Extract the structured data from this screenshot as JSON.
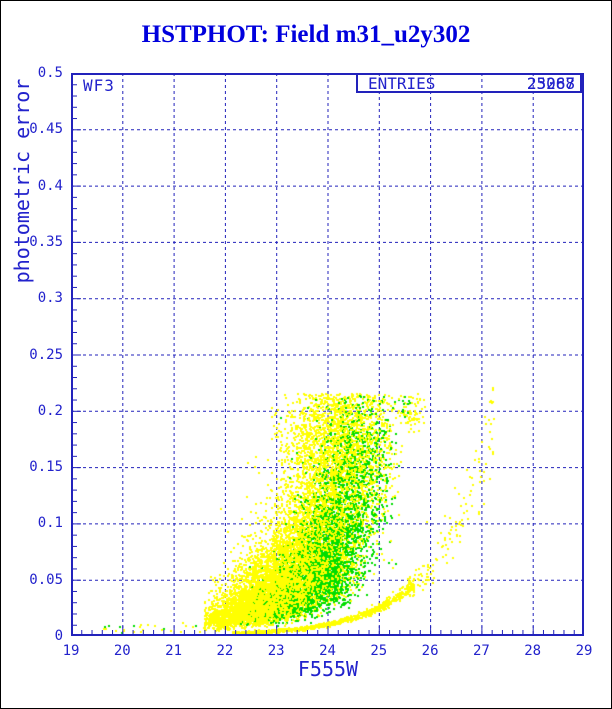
{
  "title": {
    "text": "HSTPHOT: Field m31_u2y302",
    "color": "#0000dd"
  },
  "chip_label": "WF3",
  "stats_box": {
    "label": "ENTRIES",
    "values": [
      "25268",
      "23087"
    ]
  },
  "colors": {
    "axis": "#2222bb",
    "labels": "#2222cc",
    "series_yellow": "#ffff00",
    "series_green": "#00dd00"
  },
  "chart_data": {
    "type": "scatter",
    "title": "HSTPHOT: Field m31_u2y302",
    "xlabel": "F555W",
    "ylabel": "photometric error",
    "xlim": [
      19,
      29
    ],
    "ylim": [
      0,
      0.5
    ],
    "x_major_step": 1,
    "x_minor_step": 0.2,
    "y_major_step": 0.05,
    "y_minor_step": 0.01,
    "x_tick_labels": [
      "19",
      "20",
      "21",
      "22",
      "23",
      "24",
      "25",
      "26",
      "27",
      "28",
      "29"
    ],
    "y_tick_labels": [
      "0",
      "0.05",
      "0.1",
      "0.15",
      "0.2",
      "0.25",
      "0.3",
      "0.35",
      "0.4",
      "0.45",
      "0.5"
    ],
    "grid": true,
    "legend_position": "none",
    "point_size": 2,
    "description": "Photometric error vs F555W magnitude for HST WFPC2 chip WF3. Yellow: all detected stars, dense diagonal cloud from (21.8,0.01) to (25.4,0.215) with hard error cutoff at 0.215, plus a tight bright-star sequence curve err=0.002*exp(0.9*(mag-22.2)) running from (22.2,0.002) to (27.2,0.19) and a small clump near (25.6,0.20). Green: overlaid subset concentrated near (23.9,0.06).",
    "series": [
      {
        "name": "wf3-stars-yellow-cloud",
        "color": "#ffff00",
        "kind": "lognormal_cloud",
        "n": 6500,
        "x_mean": 23.35,
        "x_sigma": 0.85,
        "x_clip": [
          21.6,
          25.45
        ],
        "ridge_x0": 22,
        "ridge_y0": 0.02,
        "ridge_k": 0.78,
        "y_sigma": 0.5,
        "y_cut": [
          0.003,
          0.215
        ]
      },
      {
        "name": "wf3-stars-yellow-faint-band",
        "color": "#ffff00",
        "kind": "gauss_blob",
        "n": 900,
        "x_mean": 24.25,
        "x_sigma": 0.6,
        "x_clip": [
          22.9,
          25.45
        ],
        "y_mean": 0.175,
        "y_sigma": 0.03,
        "y_cut": [
          0.1,
          0.215
        ]
      },
      {
        "name": "wf3-yellow-clump",
        "color": "#ffff00",
        "kind": "gauss_blob",
        "n": 70,
        "x_mean": 25.62,
        "x_sigma": 0.12,
        "x_clip": [
          25.35,
          26.0
        ],
        "y_mean": 0.2,
        "y_sigma": 0.009,
        "y_cut": [
          0.17,
          0.215
        ]
      },
      {
        "name": "wf3-yellow-bright-sparse",
        "color": "#ffff00",
        "kind": "uniform",
        "n": 20,
        "x_range": [
          19.6,
          21.7
        ],
        "y_range": [
          0.003,
          0.012
        ]
      },
      {
        "name": "good-star-sequence",
        "color": "#ffff00",
        "kind": "curve_band",
        "n": 1500,
        "x_range": [
          22.15,
          25.7
        ],
        "x_bias": 1.5,
        "c_x0": 22.2,
        "c_y0": 0.002,
        "c_k": 0.9,
        "y_mult_sigma": 0.07,
        "y_add_sigma": 0.0006
      },
      {
        "name": "good-star-sequence-faint",
        "color": "#ffff00",
        "kind": "curve_band",
        "n": 130,
        "x_range": [
          25.6,
          27.3
        ],
        "x_bias": 1.2,
        "c_x0": 22.2,
        "c_y0": 0.002,
        "c_k": 0.9,
        "y_mult_sigma": 0.13,
        "y_add_sigma": 0.002
      },
      {
        "name": "green-stars-cloud",
        "color": "#00dd00",
        "kind": "lognormal_cloud",
        "n": 3000,
        "x_mean": 23.95,
        "x_sigma": 0.55,
        "x_clip": [
          22.3,
          25.35
        ],
        "ridge_x0": 23,
        "ridge_y0": 0.03,
        "ridge_k": 0.8,
        "y_sigma": 0.45,
        "y_cut": [
          0.004,
          0.215
        ]
      },
      {
        "name": "green-stars-faint-band",
        "color": "#00dd00",
        "kind": "gauss_blob",
        "n": 230,
        "x_mean": 24.55,
        "x_sigma": 0.45,
        "x_clip": [
          23.3,
          25.4
        ],
        "y_mean": 0.16,
        "y_sigma": 0.03,
        "y_cut": [
          0.1,
          0.213
        ]
      },
      {
        "name": "green-clump",
        "color": "#00dd00",
        "kind": "gauss_blob",
        "n": 10,
        "x_mean": 25.55,
        "x_sigma": 0.1,
        "x_clip": [
          25.3,
          25.9
        ],
        "y_mean": 0.2,
        "y_sigma": 0.008,
        "y_cut": [
          0.18,
          0.213
        ]
      },
      {
        "name": "green-bright-sparse",
        "color": "#00dd00",
        "kind": "uniform",
        "n": 7,
        "x_range": [
          19.6,
          21.8
        ],
        "y_range": [
          0.003,
          0.01
        ]
      },
      {
        "name": "wf3-stars-yellow-cloud-overlay",
        "color": "#ffff00",
        "kind": "lognormal_cloud",
        "n": 2600,
        "x_mean": 23.35,
        "x_sigma": 0.85,
        "x_clip": [
          21.6,
          25.45
        ],
        "ridge_x0": 22,
        "ridge_y0": 0.02,
        "ridge_k": 0.78,
        "y_sigma": 0.5,
        "y_cut": [
          0.003,
          0.215
        ]
      },
      {
        "name": "wf3-stars-yellow-faint-band-overlay",
        "color": "#ffff00",
        "kind": "gauss_blob",
        "n": 300,
        "x_mean": 24.25,
        "x_sigma": 0.6,
        "x_clip": [
          22.9,
          25.45
        ],
        "y_mean": 0.175,
        "y_sigma": 0.03,
        "y_cut": [
          0.1,
          0.215
        ]
      }
    ]
  }
}
